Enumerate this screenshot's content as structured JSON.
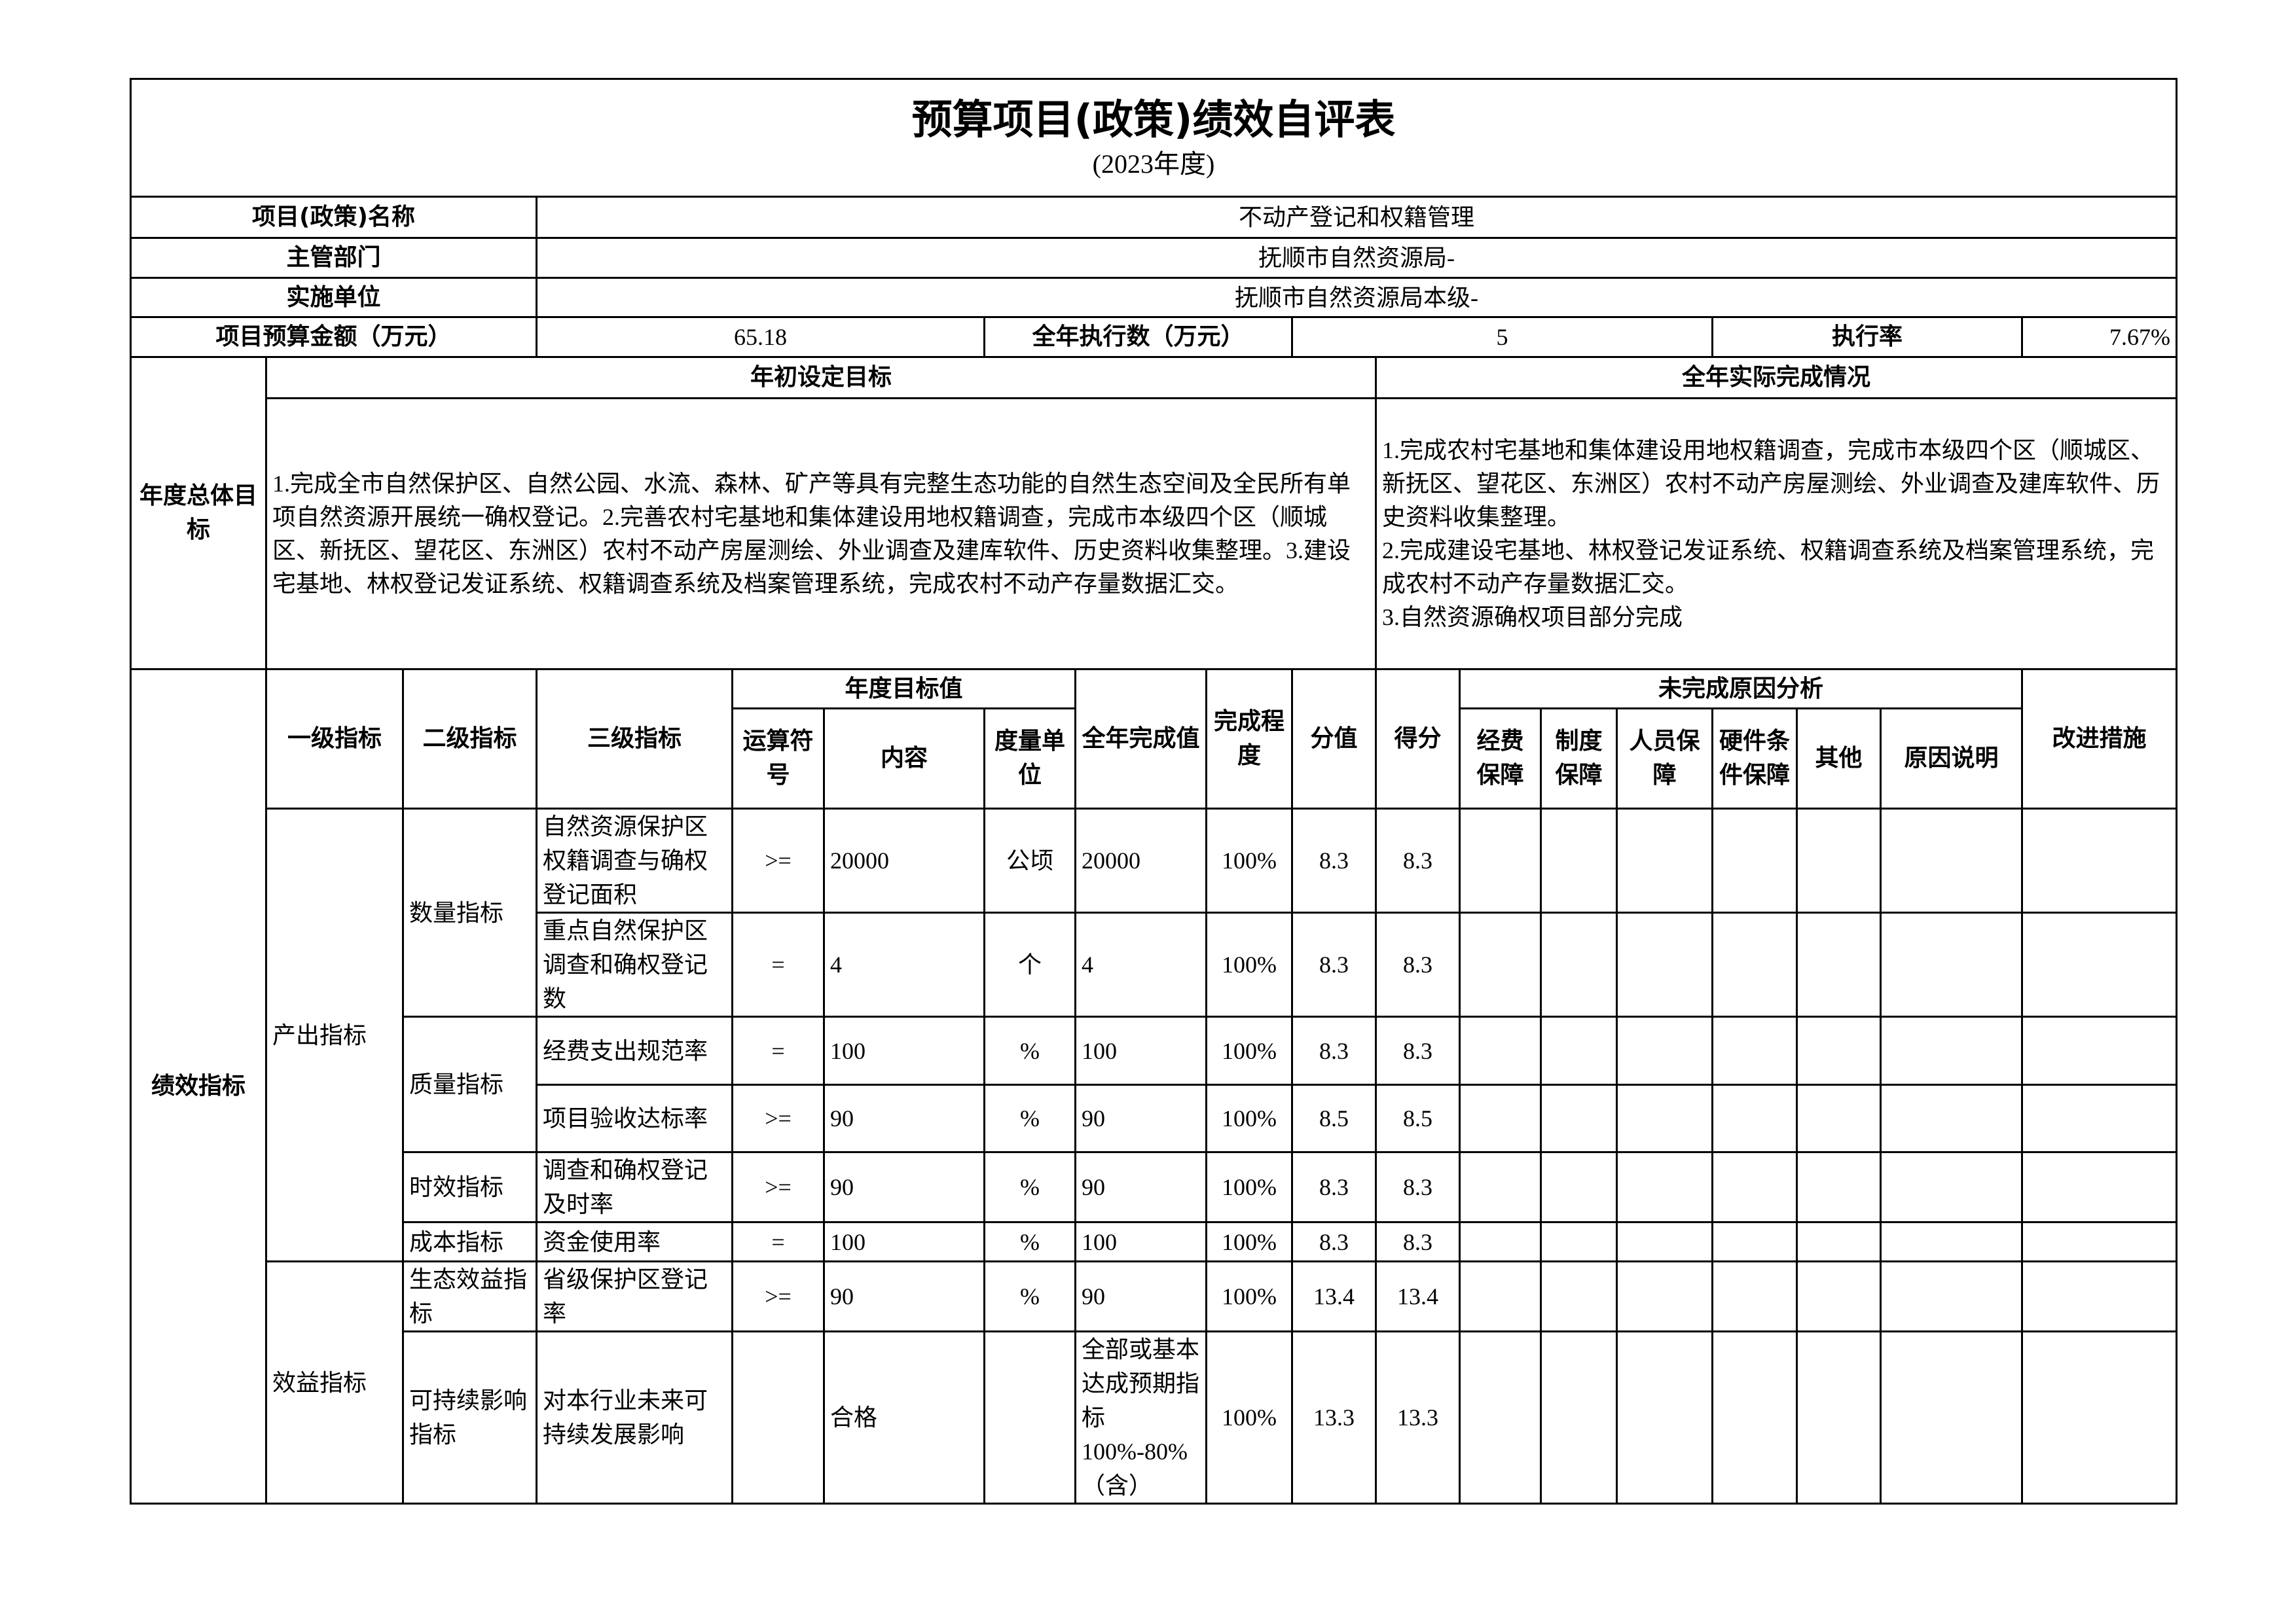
{
  "title": "预算项目(政策)绩效自评表",
  "subtitle": "(2023年度)",
  "info": {
    "project_name_label": "项目(政策)名称",
    "project_name": "不动产登记和权籍管理",
    "department_label": "主管部门",
    "department": "抚顺市自然资源局-",
    "unit_label": "实施单位",
    "unit": "抚顺市自然资源局本级-",
    "budget_label": "项目预算金额（万元）",
    "budget": "65.18",
    "executed_label": "全年执行数（万元）",
    "executed": "5",
    "rate_label": "执行率",
    "rate": "7.67%"
  },
  "goals": {
    "label": "年度总体目标",
    "initial_header": "年初设定目标",
    "actual_header": "全年实际完成情况",
    "initial_text": "1.完成全市自然保护区、自然公园、水流、森林、矿产等具有完整生态功能的自然生态空间及全民所有单项自然资源开展统一确权登记。2.完善农村宅基地和集体建设用地权籍调查，完成市本级四个区（顺城区、新抚区、望花区、东洲区）农村不动产房屋测绘、外业调查及建库软件、历史资料收集整理。3.建设宅基地、林权登记发证系统、权籍调查系统及档案管理系统，完成农村不动产存量数据汇交。",
    "actual_text": "1.完成农村宅基地和集体建设用地权籍调查，完成市本级四个区（顺城区、新抚区、望花区、东洲区）农村不动产房屋测绘、外业调查及建库软件、历史资料收集整理。\n2.完成建设宅基地、林权登记发证系统、权籍调查系统及档案管理系统，完成农村不动产存量数据汇交。\n3.自然资源确权项目部分完成"
  },
  "indicators": {
    "label": "绩效指标",
    "headers": {
      "level1": "一级指标",
      "level2": "二级指标",
      "level3": "三级指标",
      "target": "年度目标值",
      "operator": "运算符号",
      "content": "内容",
      "unit": "度量单位",
      "actual": "全年完成值",
      "degree": "完成程度",
      "score_value": "分值",
      "score": "得分",
      "reasons": "未完成原因分析",
      "funding": "经费保障",
      "system": "制度保障",
      "staff": "人员保障",
      "hardware": "硬件条件保障",
      "other": "其他",
      "explanation": "原因说明",
      "improvement": "改进措施"
    },
    "level1": [
      "产出指标",
      "效益指标"
    ],
    "level2": [
      "数量指标",
      "质量指标",
      "时效指标",
      "成本指标",
      "生态效益指标",
      "可持续影响指标"
    ],
    "rows": [
      {
        "level3": "自然资源保护区权籍调查与确权登记面积",
        "operator": ">=",
        "content": "20000",
        "unit": "公顷",
        "actual": "20000",
        "degree": "100%",
        "score_value": "8.3",
        "score": "8.3"
      },
      {
        "level3": "重点自然保护区调查和确权登记数",
        "operator": "=",
        "content": "4",
        "unit": "个",
        "actual": "4",
        "degree": "100%",
        "score_value": "8.3",
        "score": "8.3"
      },
      {
        "level3": "经费支出规范率",
        "operator": "=",
        "content": "100",
        "unit": "%",
        "actual": "100",
        "degree": "100%",
        "score_value": "8.3",
        "score": "8.3"
      },
      {
        "level3": "项目验收达标率",
        "operator": ">=",
        "content": "90",
        "unit": "%",
        "actual": "90",
        "degree": "100%",
        "score_value": "8.5",
        "score": "8.5"
      },
      {
        "level3": "调查和确权登记及时率",
        "operator": ">=",
        "content": "90",
        "unit": "%",
        "actual": "90",
        "degree": "100%",
        "score_value": "8.3",
        "score": "8.3"
      },
      {
        "level3": "资金使用率",
        "operator": "=",
        "content": "100",
        "unit": "%",
        "actual": "100",
        "degree": "100%",
        "score_value": "8.3",
        "score": "8.3"
      },
      {
        "level3": "省级保护区登记率",
        "operator": ">=",
        "content": "90",
        "unit": "%",
        "actual": "90",
        "degree": "100%",
        "score_value": "13.4",
        "score": "13.4"
      },
      {
        "level3": "对本行业未来可持续发展影响",
        "operator": "",
        "content": "合格",
        "unit": "",
        "actual": "全部或基本达成预期指标100%-80%（含）",
        "degree": "100%",
        "score_value": "13.3",
        "score": "13.3"
      }
    ]
  }
}
